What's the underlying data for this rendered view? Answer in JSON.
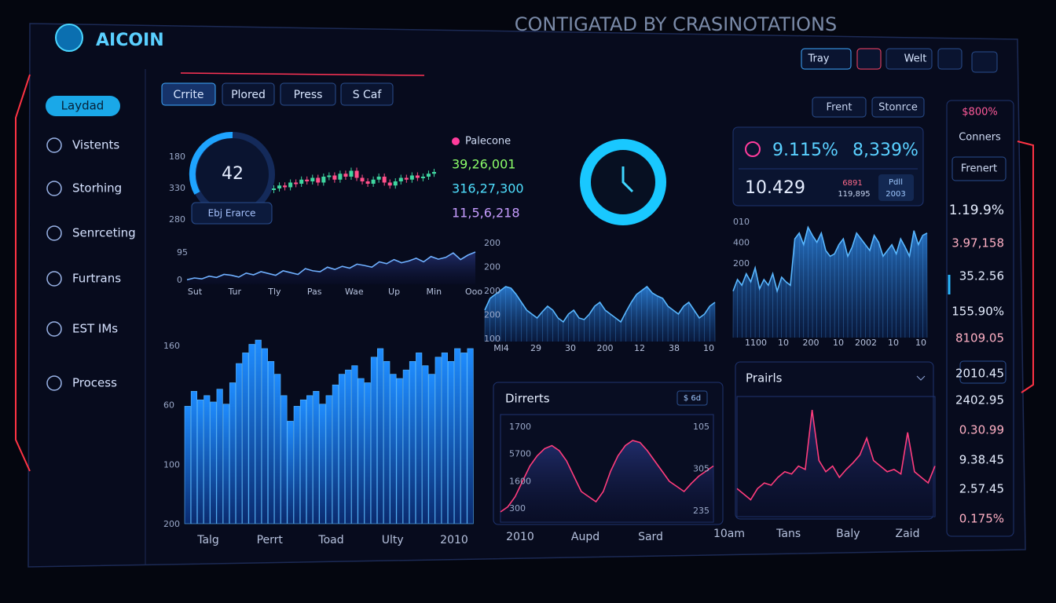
{
  "header": {
    "title": "CONTIGATAD BY CRASINOTATIONS",
    "logo": "AICOIN",
    "buttons": [
      "Tray",
      "Welt"
    ]
  },
  "sidebar": {
    "items": [
      "Laydad",
      "Vistents",
      "Storhing",
      "Senrceting",
      "Furtrans",
      "EST IMs",
      "Process"
    ]
  },
  "toolbar": {
    "buttons": [
      "Crrite",
      "Plored",
      "Press",
      "S Caf"
    ],
    "right": [
      "Frent",
      "Stonrce"
    ]
  },
  "gauge": {
    "value": 42,
    "label": "Ebj Erarce",
    "y_labels": [
      "180",
      "330",
      "280"
    ]
  },
  "legend": {
    "title": "Palecone",
    "values": [
      "39,26,001",
      "316,27,300",
      "11,5,6,218"
    ]
  },
  "candles": {
    "ylim": [
      0,
      100
    ],
    "values": [
      40,
      45,
      42,
      50,
      48,
      55,
      52,
      58,
      50,
      60,
      62,
      55,
      65,
      60,
      70,
      58,
      52,
      48,
      55,
      60,
      50,
      45,
      52,
      58,
      55,
      62,
      58,
      60,
      65,
      68
    ]
  },
  "mini_line": {
    "ylim": [
      0,
      100
    ],
    "y_labels": [
      "95",
      "0"
    ],
    "x_labels": [
      "Sut",
      "Tur",
      "Tly",
      "Pas",
      "Wae",
      "Up",
      "Min",
      "Ooo"
    ],
    "values": [
      10,
      14,
      12,
      18,
      15,
      22,
      20,
      16,
      25,
      21,
      28,
      24,
      20,
      30,
      26,
      22,
      35,
      30,
      28,
      38,
      33,
      40,
      36,
      45,
      42,
      38,
      50,
      46,
      55,
      48,
      52,
      58,
      50,
      62,
      56,
      60,
      70,
      55,
      65,
      72
    ]
  },
  "big_bars": {
    "ylim": [
      0,
      100
    ],
    "y_labels": [
      "160",
      "60",
      "100",
      "200"
    ],
    "x_labels": [
      "Talg",
      "Perrt",
      "Toad",
      "Ulty",
      "2010"
    ],
    "values": [
      55,
      62,
      58,
      60,
      57,
      63,
      56,
      66,
      75,
      80,
      84,
      86,
      82,
      76,
      70,
      60,
      48,
      55,
      58,
      60,
      62,
      56,
      60,
      65,
      70,
      72,
      74,
      68,
      66,
      78,
      82,
      76,
      70,
      68,
      72,
      76,
      80,
      74,
      70,
      78,
      80,
      76,
      82,
      80,
      82
    ]
  },
  "mid_area": {
    "ylim": [
      0,
      100
    ],
    "y_labels": [
      "200",
      "200",
      "200",
      "200",
      "100"
    ],
    "x_labels": [
      "Ml4",
      "29",
      "30",
      "200",
      "12",
      "38",
      "10"
    ],
    "values": [
      40,
      55,
      60,
      65,
      70,
      68,
      60,
      50,
      40,
      35,
      30,
      38,
      45,
      40,
      30,
      25,
      35,
      40,
      30,
      28,
      35,
      45,
      50,
      40,
      35,
      30,
      25,
      38,
      50,
      60,
      65,
      70,
      62,
      58,
      55,
      45,
      40,
      35,
      45,
      50,
      40,
      30,
      35,
      45,
      50
    ]
  },
  "stats": {
    "a": "9.115%",
    "b": "8,339%",
    "c": "10.429",
    "d": "6891",
    "e": "119,895",
    "f": "Pdll",
    "g": "2003"
  },
  "right_area": {
    "ylim": [
      0,
      100
    ],
    "y_labels": [
      "010",
      "400",
      "200"
    ],
    "x_labels": [
      "1100",
      "10",
      "200",
      "10",
      "2002",
      "10",
      "10"
    ],
    "values": [
      40,
      50,
      45,
      55,
      48,
      60,
      42,
      50,
      45,
      55,
      40,
      52,
      48,
      45,
      85,
      90,
      80,
      95,
      88,
      82,
      90,
      75,
      70,
      72,
      80,
      85,
      70,
      78,
      90,
      85,
      80,
      75,
      88,
      82,
      70,
      75,
      80,
      72,
      85,
      78,
      70,
      92,
      80,
      88,
      90
    ]
  },
  "dirrerts": {
    "title": "Dirrerts",
    "button": "$ 6d",
    "ylim": [
      0,
      100
    ],
    "y_labels": [
      "1700",
      "5700",
      "1600",
      "300"
    ],
    "y2_labels": [
      "105",
      "305",
      "235"
    ],
    "x_labels": [
      "2010",
      "Aupd",
      "Sard"
    ],
    "values": [
      10,
      15,
      25,
      40,
      55,
      65,
      72,
      75,
      70,
      60,
      45,
      30,
      25,
      20,
      30,
      50,
      65,
      75,
      80,
      78,
      70,
      60,
      50,
      40,
      35,
      30,
      38,
      45,
      50,
      55
    ]
  },
  "prairls": {
    "title": "Prairls",
    "ylim": [
      0,
      100
    ],
    "x_labels": [
      "10am",
      "Tans",
      "Baly",
      "Zaid"
    ],
    "values": [
      25,
      20,
      15,
      25,
      30,
      28,
      35,
      40,
      38,
      45,
      42,
      95,
      50,
      40,
      45,
      35,
      42,
      48,
      55,
      70,
      50,
      45,
      40,
      42,
      38,
      75,
      40,
      35,
      30,
      45
    ]
  },
  "right_col": {
    "badge": "$800%",
    "title": "Conners",
    "button": "Frenert",
    "values": [
      "1.19.9%",
      "3.97,158",
      "35.2.56",
      "155.90%",
      "8109.05",
      "2010.45",
      "2402.95",
      "0.30.99",
      "9.38.45",
      "2.57.45",
      "0.175%"
    ]
  }
}
